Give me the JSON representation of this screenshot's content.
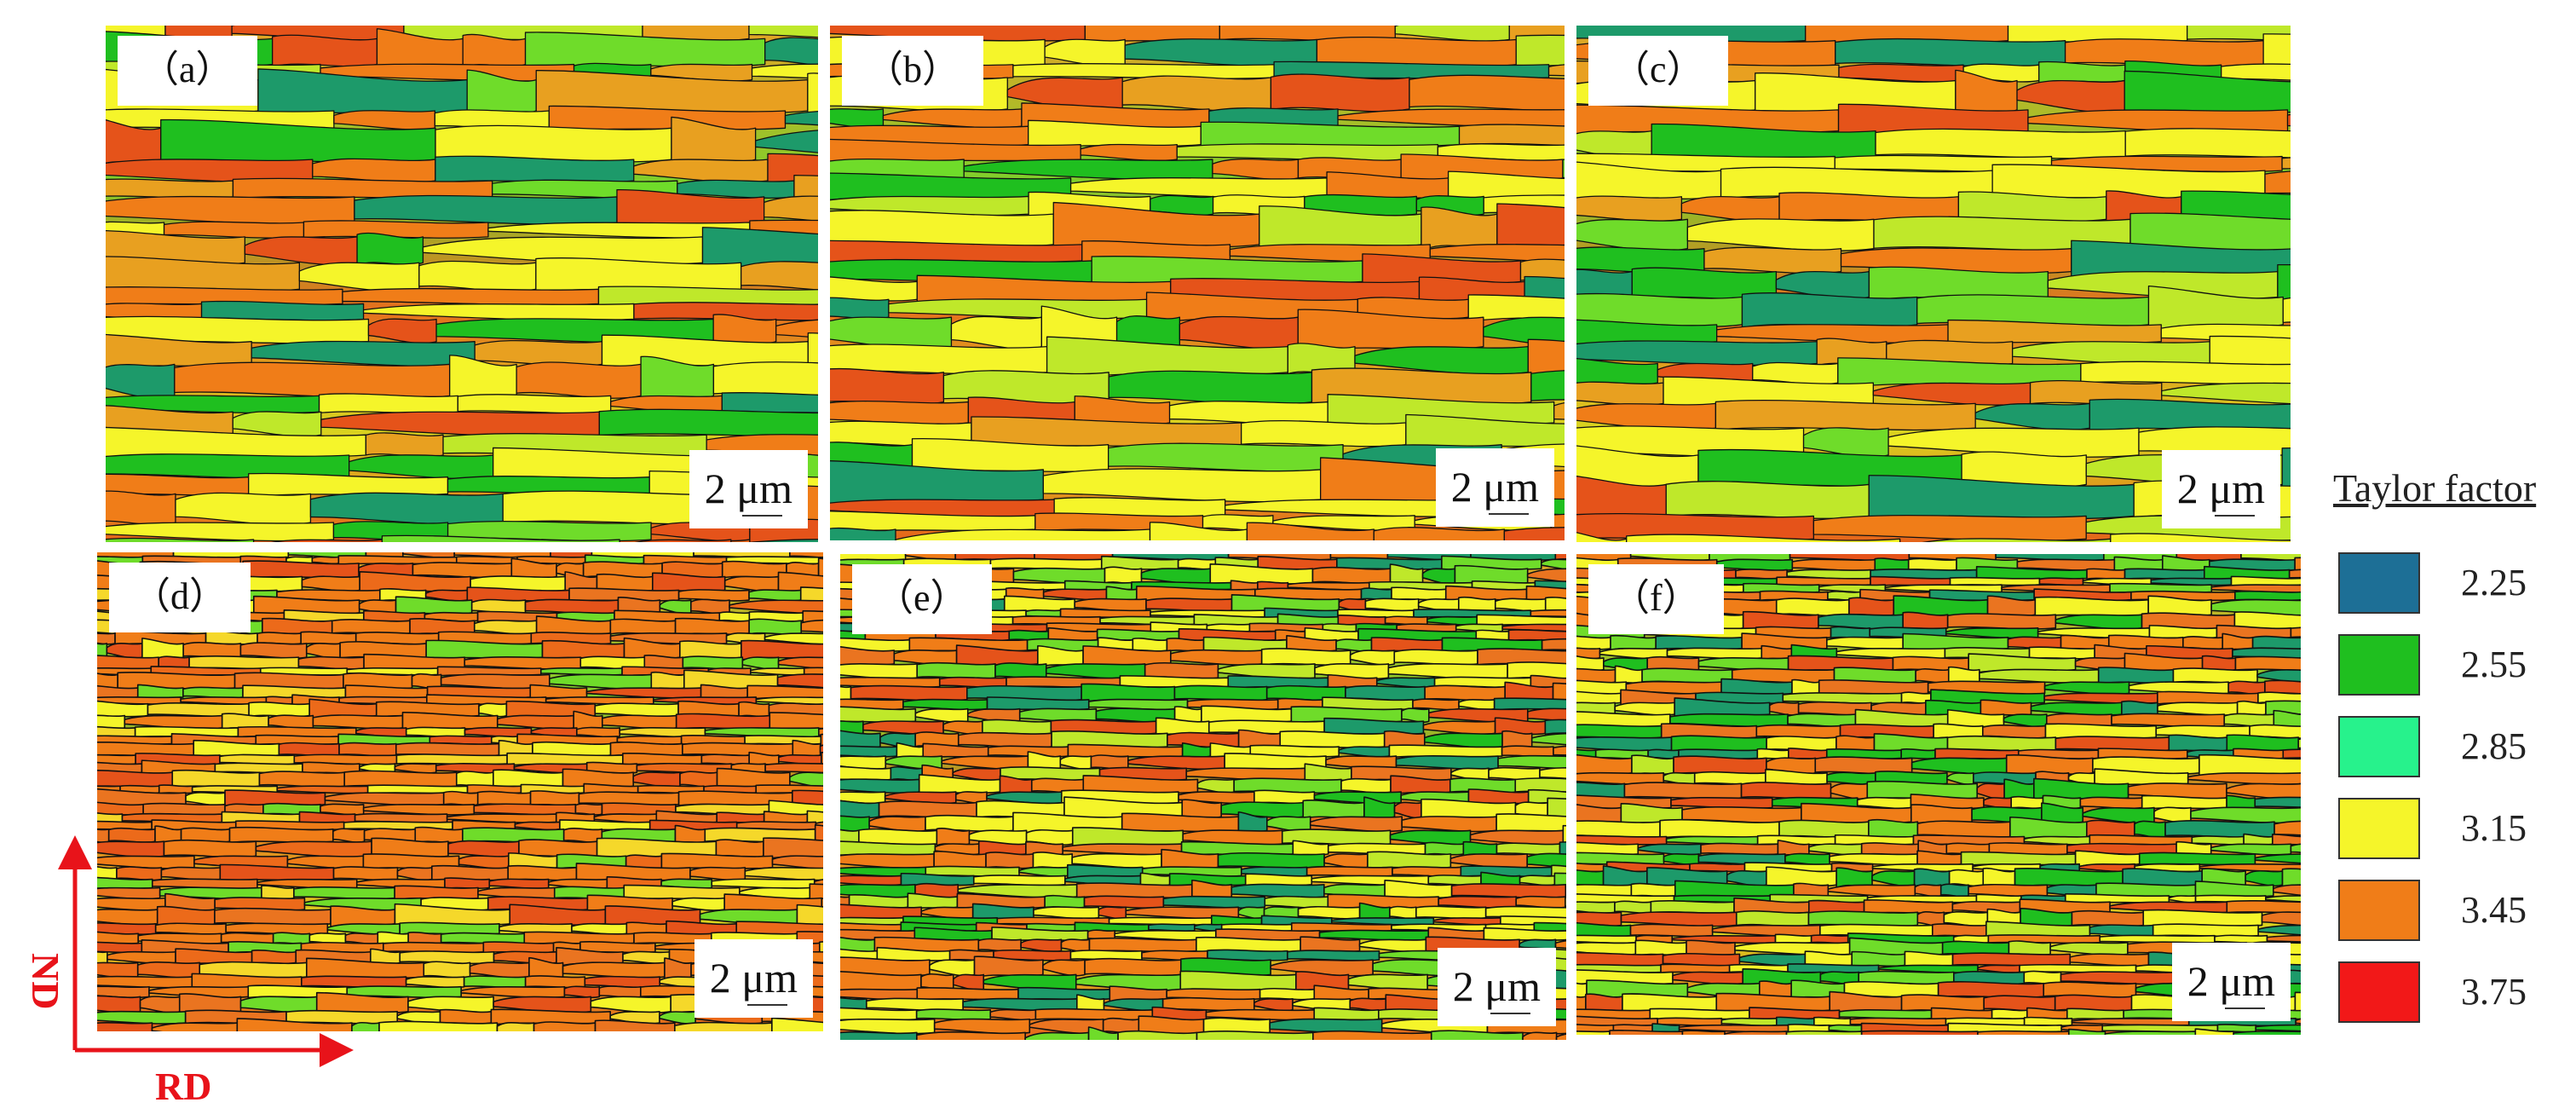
{
  "figure": {
    "panels": [
      {
        "label": "（a）",
        "scale": "2 μm",
        "style": "coarse"
      },
      {
        "label": "（b）",
        "scale": "2 μm",
        "style": "coarse"
      },
      {
        "label": "（c）",
        "scale": "2 μm",
        "style": "coarse"
      },
      {
        "label": "（d）",
        "scale": "2 μm",
        "style": "fine-orange"
      },
      {
        "label": "（e）",
        "scale": "2 μm",
        "style": "fine-mixed"
      },
      {
        "label": "（f）",
        "scale": "2 μm",
        "style": "fine-mixed"
      }
    ],
    "axes": {
      "vertical": "ND",
      "horizontal": "RD",
      "color": "#e8131a"
    },
    "legend": {
      "title": "Taylor factor",
      "items": [
        {
          "value": "2.25",
          "color": "#1d6f96"
        },
        {
          "value": "2.55",
          "color": "#1fbf1f"
        },
        {
          "value": "2.85",
          "color": "#27f28c"
        },
        {
          "value": "3.15",
          "color": "#f5f52a"
        },
        {
          "value": "3.45",
          "color": "#f07d18"
        },
        {
          "value": "3.75",
          "color": "#f21818"
        }
      ]
    }
  }
}
